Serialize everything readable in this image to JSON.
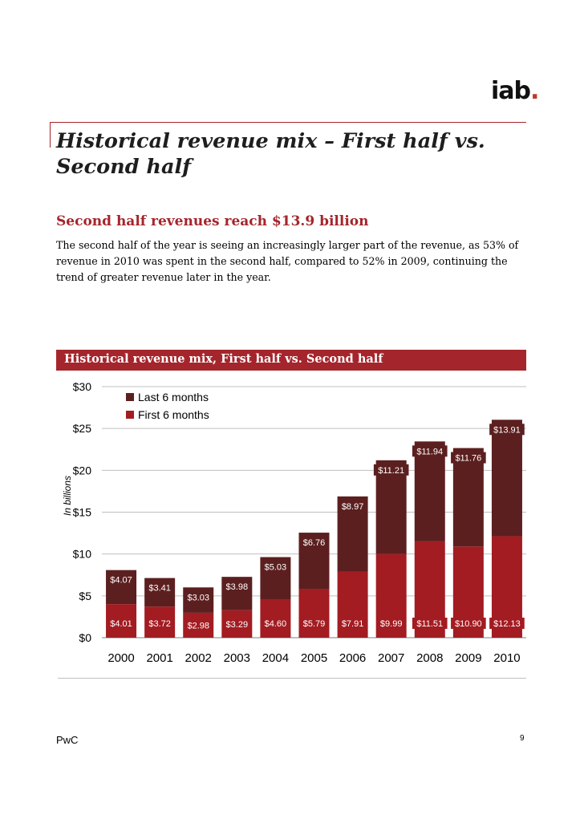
{
  "logo": {
    "text": "iab",
    "dot": "."
  },
  "title": "Historical revenue mix – First half vs. Second half",
  "subtitle": "Second half revenues reach $13.9 billion",
  "body": "The second half of the year is seeing an increasingly larger part of the revenue, as 53% of revenue in 2010 was spent in the second half, compared to 52% in 2009, continuing the trend of greater revenue later in the year.",
  "chart_header": "Historical revenue mix, First half vs. Second half",
  "footer": {
    "left": "PwC",
    "page": "9"
  },
  "chart_data": {
    "type": "bar",
    "stacked": true,
    "title": "Historical revenue mix, First half vs. Second half",
    "ylabel": "In billions",
    "xlabel": "",
    "ylim": [
      0,
      30
    ],
    "yticks": [
      "$0",
      "$5",
      "$10",
      "$15",
      "$20",
      "$25",
      "$30"
    ],
    "grid": true,
    "legend": "top-left",
    "categories": [
      "2000",
      "2001",
      "2002",
      "2003",
      "2004",
      "2005",
      "2006",
      "2007",
      "2008",
      "2009",
      "2010"
    ],
    "series": [
      {
        "name": "First 6 months",
        "color": "#a21c22",
        "values": [
          4.01,
          3.72,
          2.98,
          3.29,
          4.6,
          5.79,
          7.91,
          9.99,
          11.51,
          10.9,
          12.13
        ],
        "labels": [
          "$4.01",
          "$3.72",
          "$2.98",
          "$3.29",
          "$4.60",
          "$5.79",
          "$7.91",
          "$9.99",
          "$11.51",
          "$10.90",
          "$12.13"
        ]
      },
      {
        "name": "Last 6 months",
        "color": "#5c1f1f",
        "values": [
          4.07,
          3.41,
          3.03,
          3.98,
          5.03,
          6.76,
          8.97,
          11.21,
          11.94,
          11.76,
          13.91
        ],
        "labels": [
          "$4.07",
          "$3.41",
          "$3.03",
          "$3.98",
          "$5.03",
          "$6.76",
          "$8.97",
          "$11.21",
          "$11.94",
          "$11.76",
          "$13.91"
        ]
      }
    ],
    "legend_entries": [
      "Last 6 months",
      "First 6 months"
    ]
  }
}
